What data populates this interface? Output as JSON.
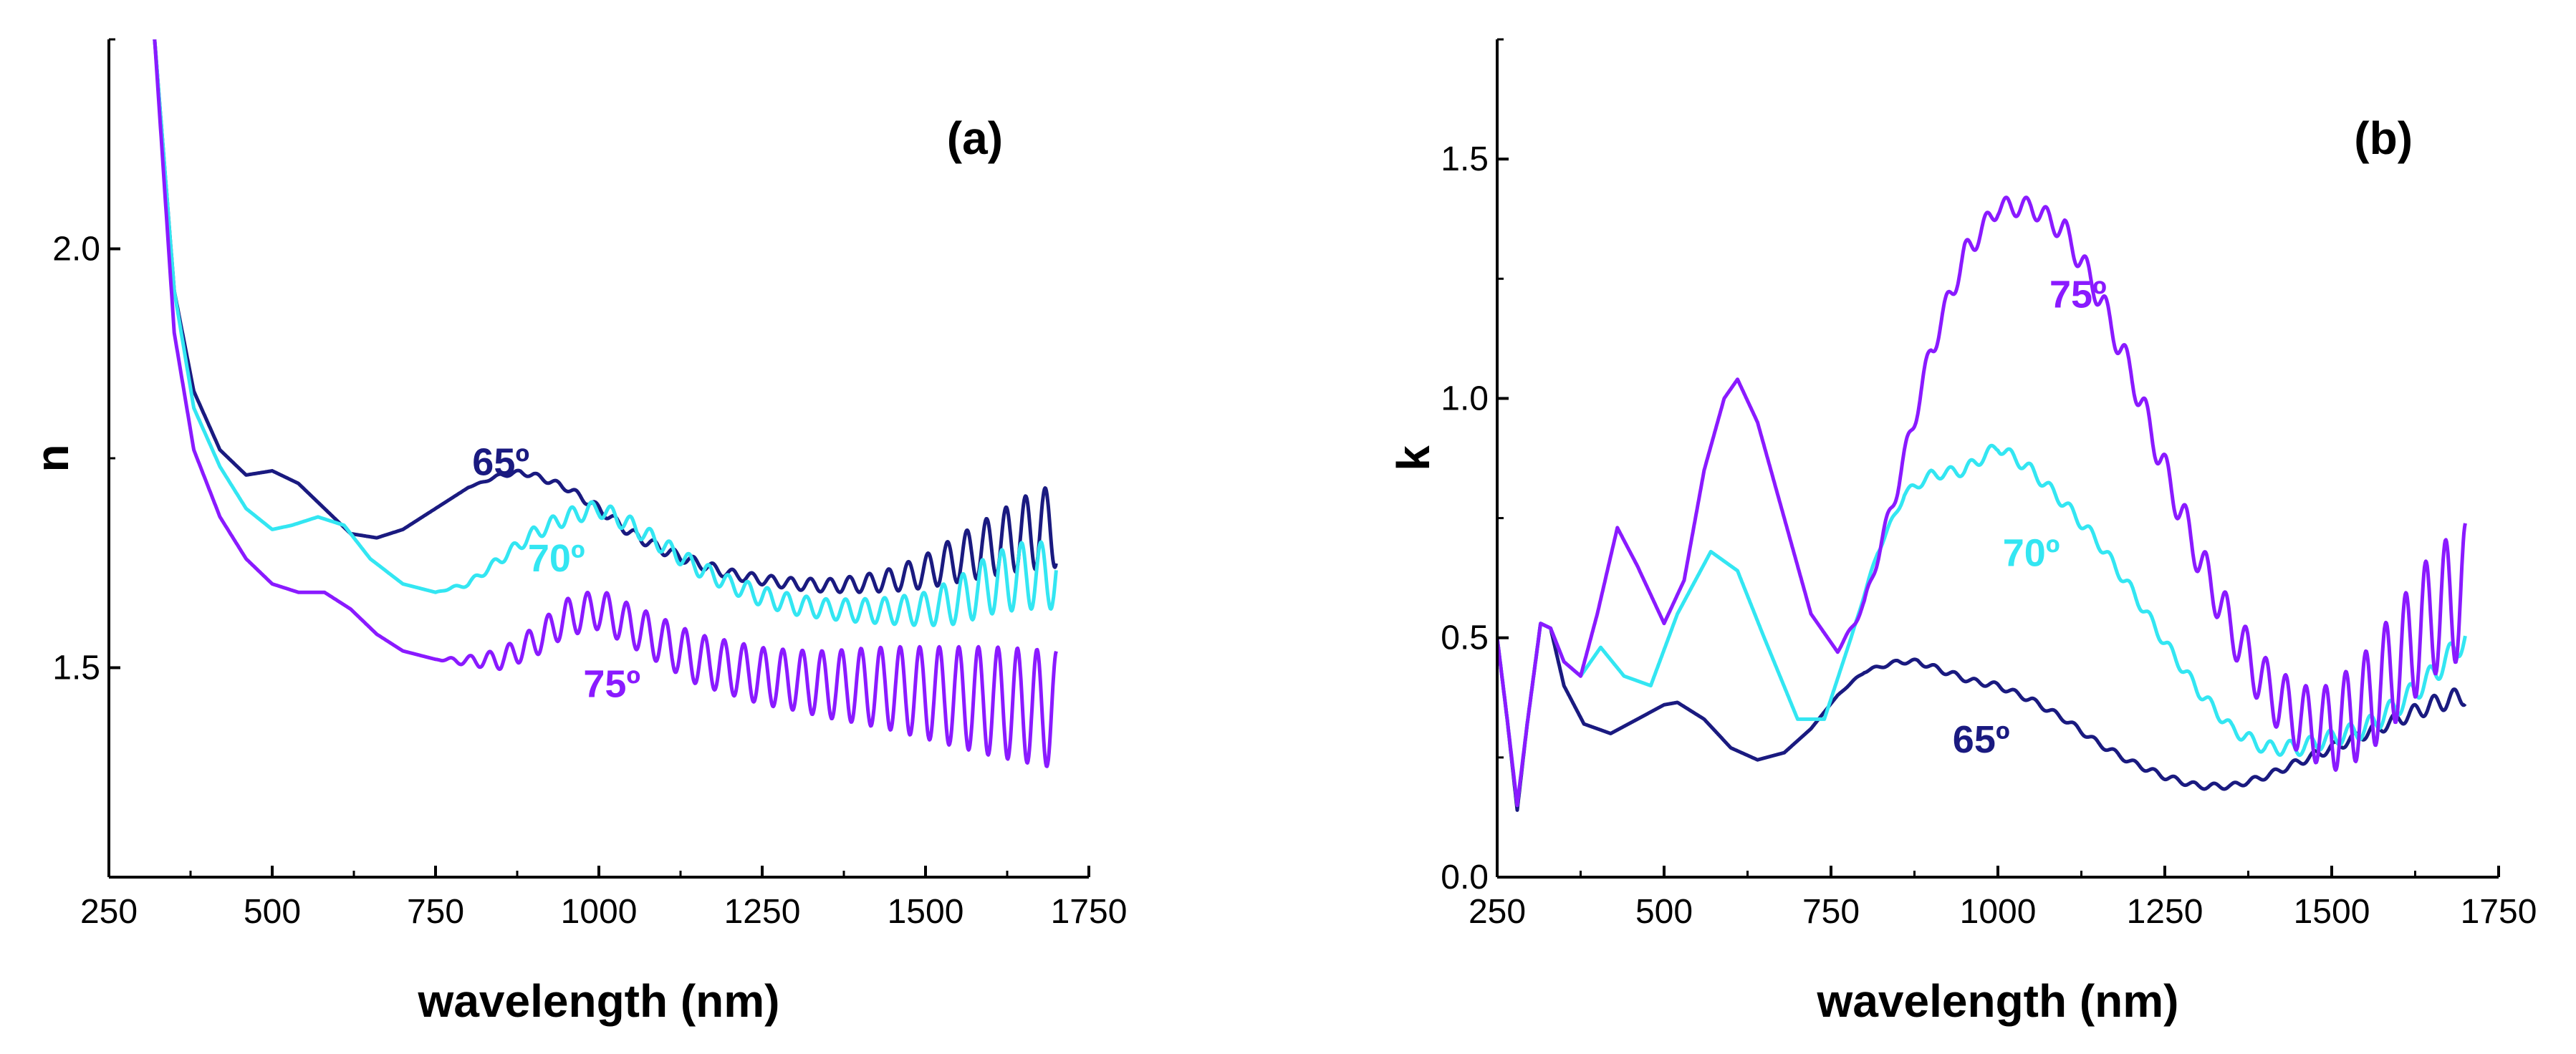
{
  "chart_data": [
    {
      "type": "line",
      "panel_label": "(a)",
      "xlabel": "wavelength (nm)",
      "ylabel": "n",
      "xlim": [
        250,
        1750
      ],
      "ylim": [
        1.25,
        2.25
      ],
      "xticks": [
        "250",
        "500",
        "750",
        "1000",
        "1250",
        "1500",
        "1750"
      ],
      "yticks": [
        "1.5",
        "2.0"
      ],
      "series": [
        {
          "name": "65º",
          "color": "#1a1a80",
          "x": [
            320,
            350,
            380,
            420,
            460,
            500,
            540,
            580,
            620,
            660,
            700,
            750,
            800,
            850,
            880,
            900,
            950,
            1000,
            1050,
            1100,
            1150,
            1200,
            1250,
            1300,
            1350,
            1400,
            1450,
            1500,
            1550,
            1600,
            1650,
            1700
          ],
          "y": [
            2.25,
            1.95,
            1.83,
            1.76,
            1.73,
            1.735,
            1.72,
            1.69,
            1.66,
            1.655,
            1.665,
            1.69,
            1.715,
            1.73,
            1.733,
            1.73,
            1.715,
            1.69,
            1.66,
            1.64,
            1.625,
            1.612,
            1.605,
            1.6,
            1.598,
            1.6,
            1.605,
            1.615,
            1.63,
            1.645,
            1.66,
            1.67
          ],
          "osc": [
            0,
            0,
            0,
            0,
            0,
            0,
            0,
            0,
            0,
            0,
            0,
            0,
            0,
            0.002,
            0.003,
            0.003,
            0.004,
            0.005,
            0.006,
            0.006,
            0.006,
            0.006,
            0.006,
            0.007,
            0.008,
            0.01,
            0.014,
            0.02,
            0.028,
            0.036,
            0.044,
            0.05
          ]
        },
        {
          "name": "70º",
          "color": "#33e6f2",
          "x": [
            320,
            350,
            380,
            420,
            460,
            500,
            530,
            570,
            610,
            650,
            700,
            750,
            800,
            850,
            900,
            950,
            1000,
            1050,
            1100,
            1150,
            1200,
            1250,
            1300,
            1350,
            1400,
            1450,
            1500,
            1550,
            1600,
            1650,
            1700
          ],
          "y": [
            2.25,
            1.95,
            1.81,
            1.74,
            1.69,
            1.665,
            1.67,
            1.68,
            1.67,
            1.63,
            1.6,
            1.59,
            1.6,
            1.63,
            1.66,
            1.68,
            1.69,
            1.67,
            1.645,
            1.62,
            1.6,
            1.585,
            1.575,
            1.57,
            1.568,
            1.568,
            1.57,
            1.58,
            1.6,
            1.61,
            1.61
          ],
          "osc": [
            0,
            0,
            0,
            0,
            0,
            0,
            0,
            0,
            0,
            0,
            0,
            0,
            0.003,
            0.006,
            0.008,
            0.01,
            0.01,
            0.01,
            0.01,
            0.01,
            0.01,
            0.012,
            0.012,
            0.012,
            0.014,
            0.016,
            0.02,
            0.028,
            0.036,
            0.04,
            0.04
          ]
        },
        {
          "name": "75º",
          "color": "#8a1aff",
          "x": [
            320,
            350,
            380,
            420,
            460,
            500,
            540,
            580,
            620,
            660,
            700,
            750,
            800,
            850,
            900,
            950,
            1000,
            1050,
            1100,
            1150,
            1200,
            1250,
            1300,
            1350,
            1400,
            1450,
            1500,
            1550,
            1600,
            1650,
            1700
          ],
          "y": [
            2.25,
            1.9,
            1.76,
            1.68,
            1.63,
            1.6,
            1.59,
            1.59,
            1.57,
            1.54,
            1.52,
            1.51,
            1.508,
            1.51,
            1.53,
            1.56,
            1.57,
            1.55,
            1.53,
            1.51,
            1.5,
            1.49,
            1.485,
            1.48,
            1.478,
            1.475,
            1.47,
            1.465,
            1.46,
            1.455,
            1.45
          ],
          "osc": [
            0,
            0,
            0,
            0,
            0,
            0,
            0,
            0,
            0,
            0,
            0,
            0,
            0.006,
            0.012,
            0.018,
            0.022,
            0.024,
            0.025,
            0.028,
            0.03,
            0.032,
            0.034,
            0.036,
            0.04,
            0.045,
            0.05,
            0.055,
            0.06,
            0.065,
            0.068,
            0.07
          ]
        }
      ],
      "annotations": [
        {
          "text": "65º",
          "x": 850,
          "y": 1.73,
          "color": "#1a1a80"
        },
        {
          "text": "70º",
          "x": 935,
          "y": 1.615,
          "color": "#33e6f2"
        },
        {
          "text": "75º",
          "x": 1020,
          "y": 1.465,
          "color": "#8a1aff"
        }
      ]
    },
    {
      "type": "line",
      "panel_label": "(b)",
      "xlabel": "wavelength (nm)",
      "ylabel": "k",
      "xlim": [
        250,
        1750
      ],
      "ylim": [
        0.0,
        1.75
      ],
      "xticks": [
        "250",
        "500",
        "750",
        "1000",
        "1250",
        "1500",
        "1750"
      ],
      "yticks": [
        "0.0",
        "0.5",
        "1.0",
        "1.5"
      ],
      "series": [
        {
          "name": "65º",
          "color": "#1a1a80",
          "x": [
            250,
            265,
            280,
            295,
            315,
            330,
            350,
            380,
            420,
            460,
            500,
            520,
            560,
            600,
            640,
            680,
            720,
            760,
            800,
            850,
            880,
            920,
            960,
            1000,
            1050,
            1100,
            1150,
            1200,
            1250,
            1300,
            1350,
            1400,
            1450,
            1500,
            1550,
            1600,
            1650,
            1700
          ],
          "y": [
            0.5,
            0.33,
            0.14,
            0.32,
            0.53,
            0.52,
            0.4,
            0.32,
            0.3,
            0.33,
            0.36,
            0.365,
            0.33,
            0.27,
            0.245,
            0.26,
            0.31,
            0.38,
            0.43,
            0.45,
            0.45,
            0.43,
            0.41,
            0.4,
            0.37,
            0.33,
            0.28,
            0.24,
            0.21,
            0.19,
            0.19,
            0.21,
            0.24,
            0.27,
            0.3,
            0.33,
            0.36,
            0.38
          ],
          "osc": [
            0,
            0,
            0,
            0,
            0,
            0,
            0,
            0,
            0,
            0,
            0,
            0,
            0,
            0,
            0,
            0,
            0,
            0,
            0.003,
            0.004,
            0.005,
            0.006,
            0.006,
            0.006,
            0.006,
            0.006,
            0.006,
            0.006,
            0.006,
            0.006,
            0.006,
            0.006,
            0.008,
            0.01,
            0.012,
            0.014,
            0.018,
            0.02
          ]
        },
        {
          "name": "70º",
          "color": "#33e6f2",
          "x": [
            250,
            265,
            280,
            295,
            315,
            330,
            350,
            375,
            405,
            440,
            480,
            520,
            570,
            610,
            650,
            700,
            740,
            780,
            820,
            860,
            900,
            950,
            1000,
            1050,
            1100,
            1150,
            1200,
            1250,
            1300,
            1350,
            1400,
            1450,
            1500,
            1550,
            1600,
            1650,
            1700
          ],
          "y": [
            0.5,
            0.33,
            0.15,
            0.32,
            0.53,
            0.52,
            0.45,
            0.42,
            0.48,
            0.42,
            0.4,
            0.55,
            0.68,
            0.64,
            0.5,
            0.33,
            0.33,
            0.5,
            0.68,
            0.8,
            0.84,
            0.85,
            0.9,
            0.85,
            0.78,
            0.7,
            0.6,
            0.49,
            0.39,
            0.31,
            0.27,
            0.27,
            0.29,
            0.31,
            0.36,
            0.42,
            0.5
          ],
          "osc": [
            0,
            0,
            0,
            0,
            0,
            0,
            0,
            0,
            0,
            0,
            0,
            0,
            0,
            0,
            0,
            0,
            0,
            0,
            0.005,
            0.008,
            0.01,
            0.012,
            0.012,
            0.012,
            0.012,
            0.012,
            0.012,
            0.012,
            0.012,
            0.012,
            0.014,
            0.016,
            0.018,
            0.02,
            0.022,
            0.024,
            0.025
          ]
        },
        {
          "name": "75º",
          "color": "#8a1aff",
          "x": [
            250,
            265,
            280,
            295,
            315,
            330,
            350,
            375,
            400,
            430,
            460,
            500,
            530,
            560,
            590,
            610,
            640,
            680,
            720,
            760,
            800,
            850,
            900,
            950,
            1000,
            1050,
            1100,
            1150,
            1200,
            1250,
            1300,
            1350,
            1400,
            1450,
            1500,
            1550,
            1600,
            1650,
            1700
          ],
          "y": [
            0.5,
            0.33,
            0.15,
            0.32,
            0.53,
            0.52,
            0.45,
            0.42,
            0.55,
            0.73,
            0.65,
            0.53,
            0.62,
            0.85,
            1.0,
            1.04,
            0.95,
            0.75,
            0.55,
            0.47,
            0.57,
            0.82,
            1.1,
            1.3,
            1.4,
            1.4,
            1.35,
            1.22,
            1.05,
            0.85,
            0.67,
            0.52,
            0.4,
            0.33,
            0.31,
            0.36,
            0.45,
            0.55,
            0.6
          ],
          "osc": [
            0,
            0,
            0,
            0,
            0,
            0,
            0,
            0,
            0,
            0,
            0,
            0,
            0,
            0,
            0,
            0,
            0,
            0,
            0,
            0,
            0.01,
            0.02,
            0.025,
            0.025,
            0.02,
            0.02,
            0.025,
            0.03,
            0.03,
            0.035,
            0.04,
            0.05,
            0.06,
            0.07,
            0.09,
            0.11,
            0.12,
            0.13,
            0.14
          ]
        }
      ],
      "annotations": [
        {
          "text": "75º",
          "x": 1120,
          "y": 1.19,
          "color": "#8a1aff"
        },
        {
          "text": "70º",
          "x": 1050,
          "y": 0.65,
          "color": "#33e6f2"
        },
        {
          "text": "65º",
          "x": 975,
          "y": 0.26,
          "color": "#1a1a80"
        }
      ]
    }
  ]
}
